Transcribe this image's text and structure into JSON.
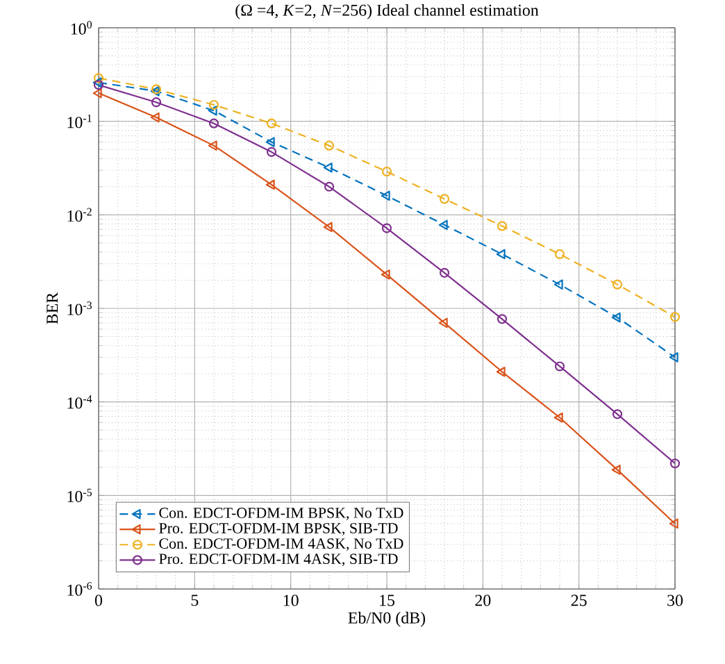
{
  "chart_data": {
    "type": "line",
    "title": "(Ω =4, *K*=2, *N*=256) Ideal channel estimation",
    "xlabel": "Eb/N0 (dB)",
    "ylabel": "BER",
    "x": [
      0,
      3,
      6,
      9,
      12,
      15,
      18,
      21,
      24,
      27,
      30
    ],
    "series": [
      {
        "name": "Con. EDCT-OFDM-IM BPSK, No TxD",
        "color": "#0072bd",
        "marker": "triangle",
        "line_style": "dashed",
        "values": [
          0.26,
          0.21,
          0.13,
          0.06,
          0.032,
          0.016,
          0.0078,
          0.0038,
          0.0018,
          0.0008,
          0.0003
        ]
      },
      {
        "name": "Pro. EDCT-OFDM-IM BPSK, SIB-TD",
        "color": "#d95319",
        "marker": "triangle",
        "line_style": "solid",
        "values": [
          0.2,
          0.11,
          0.055,
          0.021,
          0.0074,
          0.0023,
          0.0007,
          0.00021,
          6.8e-05,
          1.88e-05,
          5e-06
        ]
      },
      {
        "name": "Con. EDCT-OFDM-IM 4ASK, No TxD",
        "color": "#edb120",
        "marker": "circle",
        "line_style": "dashed",
        "values": [
          0.29,
          0.22,
          0.15,
          0.095,
          0.055,
          0.029,
          0.0148,
          0.0076,
          0.0038,
          0.0018,
          0.00081
        ]
      },
      {
        "name": "Pro. EDCT-OFDM-IM 4ASK, SIB-TD",
        "color": "#7e2f8e",
        "marker": "circle",
        "line_style": "solid",
        "values": [
          0.245,
          0.16,
          0.095,
          0.047,
          0.02,
          0.0072,
          0.0024,
          0.00077,
          0.00024,
          7.4e-05,
          2.2e-05
        ]
      }
    ],
    "log": "y",
    "grid": true,
    "legend": "bottom left",
    "xlim": [
      0,
      30
    ],
    "xticks": [
      0,
      5,
      10,
      15,
      20,
      25,
      30
    ],
    "ylim": [
      1e-06,
      1
    ],
    "yticks": [
      {
        "value": 1e-06,
        "label": "10$^{-6}$"
      },
      {
        "value": 1e-05,
        "label": "10$^{-5}$"
      },
      {
        "value": 0.0001,
        "label": "10$^{-4}$"
      },
      {
        "value": 0.001,
        "label": "10$^{-3}$"
      },
      {
        "value": 0.01,
        "label": "10$^{-2}$"
      },
      {
        "value": 0.1,
        "label": "10$^{-1}$"
      },
      {
        "value": 1,
        "label": "10$^{0}$"
      }
    ]
  }
}
